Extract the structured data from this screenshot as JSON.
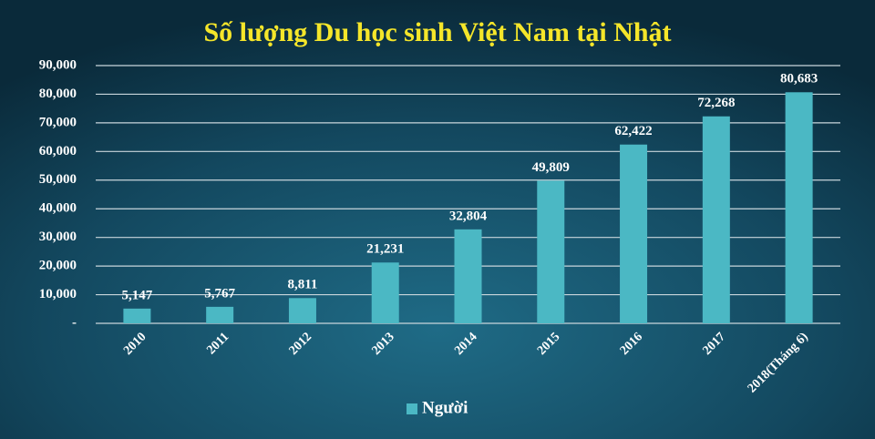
{
  "chart_data": {
    "type": "bar",
    "title": "Số lượng Du học sinh Việt Nam tại Nhật",
    "categories": [
      "2010",
      "2011",
      "2012",
      "2013",
      "2014",
      "2015",
      "2016",
      "2017",
      "2018(Tháng 6)"
    ],
    "series": [
      {
        "name": "Người",
        "color": "#4bb8c4",
        "values": [
          5147,
          5767,
          8811,
          21231,
          32804,
          49809,
          62422,
          72268,
          80683
        ],
        "value_labels": [
          "5,147",
          "5,767",
          "8,811",
          "21,231",
          "32,804",
          "49,809",
          "62,422",
          "72,268",
          "80,683"
        ]
      }
    ],
    "ylim": [
      0,
      90000
    ],
    "yticks": [
      {
        "value": 0,
        "label": "-"
      },
      {
        "value": 10000,
        "label": "10,000"
      },
      {
        "value": 20000,
        "label": "20,000"
      },
      {
        "value": 30000,
        "label": "30,000"
      },
      {
        "value": 40000,
        "label": "40,000"
      },
      {
        "value": 50000,
        "label": "50,000"
      },
      {
        "value": 60000,
        "label": "60,000"
      },
      {
        "value": 70000,
        "label": "70,000"
      },
      {
        "value": 80000,
        "label": "80,000"
      },
      {
        "value": 90000,
        "label": "90,000"
      }
    ],
    "grid": true,
    "legend": "bottom"
  }
}
